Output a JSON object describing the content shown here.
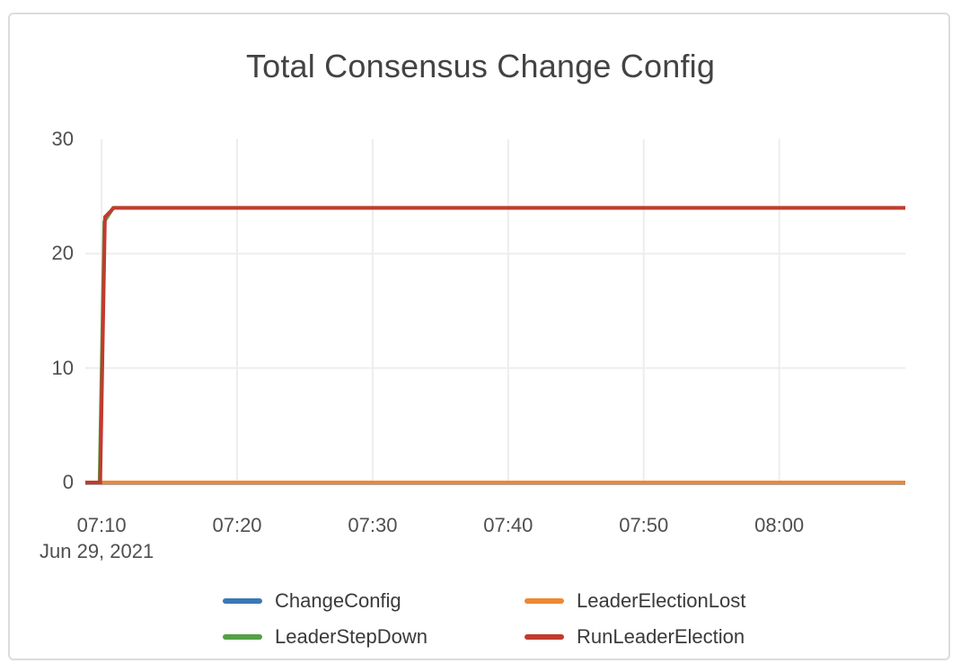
{
  "colors": {
    "gridline": "#ededed",
    "zero_axis": "#a8a8a8",
    "card_border": "#dcdcdc",
    "title_text": "#434343",
    "tick_text": "#4f4f4f",
    "legend_text": "#3a3a3a"
  },
  "chart_data": {
    "type": "line",
    "title": "Total Consensus Change Config",
    "x_axis": {
      "date_label": "Jun 29, 2021",
      "tick_labels": [
        "07:10",
        "07:20",
        "07:30",
        "07:40",
        "07:50",
        "08:00"
      ],
      "tick_minutes": [
        10,
        20,
        30,
        40,
        50,
        60
      ],
      "domain_minutes": [
        8.8,
        69.3
      ],
      "unit": "time of day (HH:MM) on Jun 29, 2021; numeric x stored as minutes after 07:00"
    },
    "y_axis": {
      "range": [
        0,
        30
      ],
      "ticks": [
        0,
        10,
        20,
        30
      ],
      "gridline_ticks": [
        0,
        10,
        20
      ]
    },
    "grid": true,
    "legend_position": "bottom",
    "plateau_value": 24,
    "series": [
      {
        "name": "ChangeConfig",
        "color": "#3a78b4",
        "points": [
          [
            8.8,
            0
          ],
          [
            69.3,
            0
          ]
        ],
        "summary": "constant 0 for the whole window (hidden under LeaderElectionLost)"
      },
      {
        "name": "LeaderElectionLost",
        "color": "#ee8733",
        "points": [
          [
            8.8,
            0
          ],
          [
            69.3,
            0
          ]
        ],
        "summary": "constant 0 for the whole window"
      },
      {
        "name": "LeaderStepDown",
        "color": "#55a046",
        "points": [
          [
            8.8,
            0
          ],
          [
            9.85,
            0
          ],
          [
            10.2,
            22.8
          ],
          [
            10.85,
            24
          ],
          [
            69.3,
            24
          ]
        ],
        "summary": "0 until ~07:10, jumps to 24 and stays at 24"
      },
      {
        "name": "RunLeaderElection",
        "color": "#c23a2e",
        "points": [
          [
            8.8,
            0
          ],
          [
            9.9,
            0
          ],
          [
            10.25,
            23.2
          ],
          [
            10.9,
            24
          ],
          [
            69.3,
            24
          ]
        ],
        "summary": "0 until ~07:10, jumps to 24 and stays at 24"
      }
    ]
  }
}
